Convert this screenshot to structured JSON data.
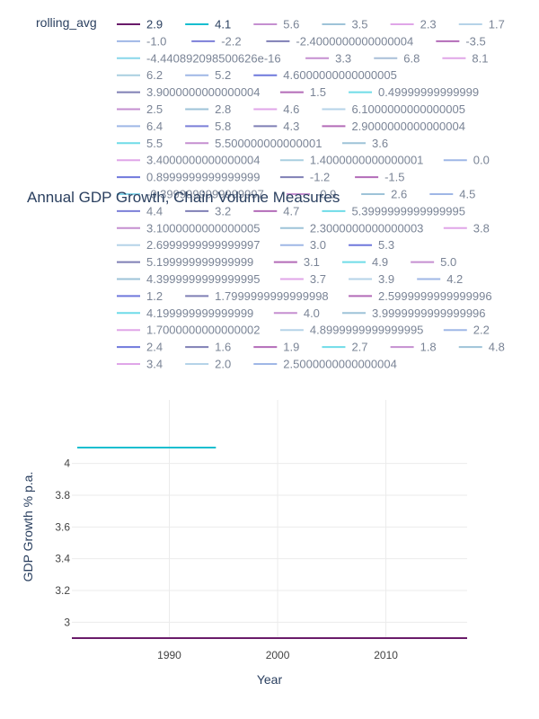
{
  "chart_data": {
    "type": "line",
    "title": "Annual GDP Growth, Chain Volume Measures",
    "xlabel": "Year",
    "ylabel": "GDP Growth % p.a.",
    "legend_title": "rolling_avg",
    "xlim": [
      1981,
      2017.5
    ],
    "ylim": [
      2.9,
      4.4
    ],
    "x_ticks": [
      "1990",
      "2000",
      "2010"
    ],
    "y_ticks": [
      "3",
      "3.2",
      "3.4",
      "3.6",
      "3.8",
      "4"
    ],
    "grid": true,
    "legend_placement": "top",
    "series": [
      {
        "name": "2.9",
        "color": "#6a1b6a",
        "x": [
          1981,
          2017.5
        ],
        "y": [
          2.9,
          2.9
        ]
      },
      {
        "name": "4.1",
        "color": "#17becf",
        "x": [
          1981.5,
          1994.3
        ],
        "y": [
          4.1,
          4.1
        ]
      },
      {
        "name": "5.6",
        "color": "#c58fd0"
      },
      {
        "name": "3.5",
        "color": "#9ec3d8"
      },
      {
        "name": "2.3",
        "color": "#e0a6e8"
      },
      {
        "name": "1.7",
        "color": "#b5d3e8"
      },
      {
        "name": "-1.0",
        "color": "#9fb7e6"
      },
      {
        "name": "-2.2",
        "color": "#7b7fd8"
      },
      {
        "name": "-2.4000000000000004",
        "color": "#7f7fb5"
      },
      {
        "name": "-3.5",
        "color": "#b36bb8"
      },
      {
        "name": "-4.440892098500626e-16",
        "color": "#88d7ea"
      },
      {
        "name": "3.3",
        "color": "#c58fd0"
      },
      {
        "name": "6.8",
        "color": "#a9bfd8"
      },
      {
        "name": "8.1",
        "color": "#e0a6e8"
      },
      {
        "name": "6.2",
        "color": "#a9cfe0"
      },
      {
        "name": "5.2",
        "color": "#9fb7e6"
      },
      {
        "name": "4.6000000000000005",
        "color": "#6f78dc"
      },
      {
        "name": "3.9000000000000004",
        "color": "#7f7fb5"
      },
      {
        "name": "1.5",
        "color": "#b36bb8"
      },
      {
        "name": "0.49999999999999",
        "color": "#6fdce8"
      },
      {
        "name": "2.5",
        "color": "#c58fd0"
      },
      {
        "name": "2.8",
        "color": "#9ec3d8"
      },
      {
        "name": "4.6",
        "color": "#e0a6e8"
      },
      {
        "name": "6.1000000000000005",
        "color": "#b5d3e8"
      },
      {
        "name": "6.4",
        "color": "#9fb7e6"
      },
      {
        "name": "5.8",
        "color": "#7b7fd8"
      },
      {
        "name": "4.3",
        "color": "#7f7fb5"
      },
      {
        "name": "2.9000000000000004",
        "color": "#b36bb8"
      },
      {
        "name": "5.5",
        "color": "#6fdce8"
      },
      {
        "name": "5.500000000000001",
        "color": "#c58fd0"
      },
      {
        "name": "3.6",
        "color": "#9ec3d8"
      },
      {
        "name": "3.4000000000000004",
        "color": "#e0a6e8"
      },
      {
        "name": "1.4000000000000001",
        "color": "#a9cfe0"
      },
      {
        "name": "0.0",
        "color": "#9fb7e6"
      },
      {
        "name": "0.8999999999999999",
        "color": "#6f78dc"
      },
      {
        "name": "-1.2",
        "color": "#7f7fb5"
      },
      {
        "name": "-1.5",
        "color": "#b36bb8"
      },
      {
        "name": "-0.3999999999999997",
        "color": "#88d7ea"
      },
      {
        "name": "-0.9",
        "color": "#c58fd0"
      },
      {
        "name": "2.6",
        "color": "#9ec3d8"
      },
      {
        "name": "4.5",
        "color": "#9fb7e6"
      },
      {
        "name": "4.4",
        "color": "#7b7fd8"
      },
      {
        "name": "3.2",
        "color": "#7f7fb5"
      },
      {
        "name": "4.7",
        "color": "#b36bb8"
      },
      {
        "name": "5.3999999999999995",
        "color": "#6fdce8"
      },
      {
        "name": "3.1000000000000005",
        "color": "#c58fd0"
      },
      {
        "name": "2.3000000000000003",
        "color": "#9ec3d8"
      },
      {
        "name": "3.8",
        "color": "#e0a6e8"
      },
      {
        "name": "2.6999999999999997",
        "color": "#b5d3e8"
      },
      {
        "name": "3.0",
        "color": "#9fb7e6"
      },
      {
        "name": "5.3",
        "color": "#6f78dc"
      },
      {
        "name": "5.199999999999999",
        "color": "#7f7fb5"
      },
      {
        "name": "3.1",
        "color": "#b36bb8"
      },
      {
        "name": "4.9",
        "color": "#6fdce8"
      },
      {
        "name": "5.0",
        "color": "#c58fd0"
      },
      {
        "name": "4.3999999999999995",
        "color": "#9ec3d8"
      },
      {
        "name": "3.7",
        "color": "#e0a6e8"
      },
      {
        "name": "3.9",
        "color": "#b5d3e8"
      },
      {
        "name": "4.2",
        "color": "#9fb7e6"
      },
      {
        "name": "1.2",
        "color": "#6f78dc"
      },
      {
        "name": "1.7999999999999998",
        "color": "#7f7fb5"
      },
      {
        "name": "2.5999999999999996",
        "color": "#b36bb8"
      },
      {
        "name": "4.199999999999999",
        "color": "#6fdce8"
      },
      {
        "name": "4.0",
        "color": "#c58fd0"
      },
      {
        "name": "3.9999999999999996",
        "color": "#9ec3d8"
      },
      {
        "name": "1.7000000000000002",
        "color": "#e0a6e8"
      },
      {
        "name": "4.8999999999999995",
        "color": "#b5d3e8"
      },
      {
        "name": "2.2",
        "color": "#9fb7e6"
      },
      {
        "name": "2.4",
        "color": "#6f78dc"
      },
      {
        "name": "1.6",
        "color": "#7f7fb5"
      },
      {
        "name": "1.9",
        "color": "#b36bb8"
      },
      {
        "name": "2.7",
        "color": "#6fdce8"
      },
      {
        "name": "1.8",
        "color": "#c58fd0"
      },
      {
        "name": "4.8",
        "color": "#9ec3d8"
      },
      {
        "name": "3.4",
        "color": "#e0a6e8"
      },
      {
        "name": "2.0",
        "color": "#b5d3e8"
      },
      {
        "name": "2.5000000000000004",
        "color": "#9fb7e6"
      }
    ]
  }
}
